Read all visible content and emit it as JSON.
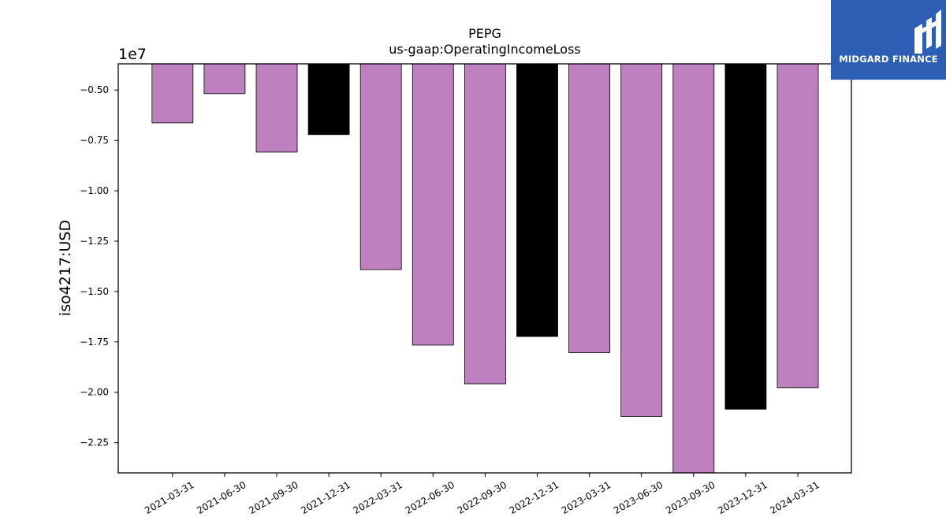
{
  "chart_data": {
    "type": "bar",
    "title": "PEPG",
    "subtitle": "us-gaap:OperatingIncomeLoss",
    "xlabel": "",
    "ylabel": "iso4217:USD",
    "y_offset_label": "1e7",
    "ylim": [
      -2.4,
      -0.37
    ],
    "y_ticks": [
      -0.5,
      -0.75,
      -1.0,
      -1.25,
      -1.5,
      -1.75,
      -2.0,
      -2.25
    ],
    "y_tick_labels": [
      "−0.50",
      "−0.75",
      "−1.00",
      "−1.25",
      "−1.50",
      "−1.75",
      "−2.00",
      "−2.25"
    ],
    "categories": [
      "2021-03-31",
      "2021-06-30",
      "2021-09-30",
      "2021-12-31",
      "2022-03-31",
      "2022-06-30",
      "2022-09-30",
      "2022-12-31",
      "2023-03-31",
      "2023-06-30",
      "2023-09-30",
      "2023-12-31",
      "2024-03-31"
    ],
    "values": [
      -0.663,
      -0.518,
      -0.808,
      -0.721,
      -1.391,
      -1.766,
      -1.958,
      -1.723,
      -1.804,
      -2.12,
      -2.45,
      -2.084,
      -1.977
    ],
    "value_scale": 10000000,
    "bar_colors": [
      "#bf80bf",
      "#bf80bf",
      "#bf80bf",
      "#000000",
      "#bf80bf",
      "#bf80bf",
      "#bf80bf",
      "#000000",
      "#bf80bf",
      "#bf80bf",
      "#bf80bf",
      "#000000",
      "#bf80bf"
    ],
    "grid": false,
    "legend": "none"
  },
  "logo": {
    "text": "MIDGARD FINANCE",
    "bg_color": "#2c5fb3"
  }
}
